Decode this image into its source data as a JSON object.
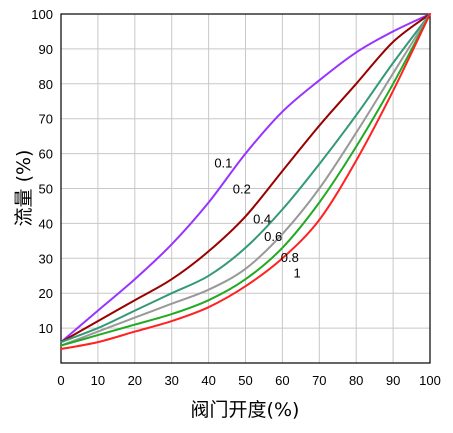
{
  "chart_data": {
    "type": "line",
    "title": "",
    "xlabel": "阀门开度(%)",
    "ylabel": "流量 (%)",
    "xlim": [
      0,
      100
    ],
    "ylim": [
      0,
      100
    ],
    "x_ticks": [
      "0",
      "10",
      "20",
      "30",
      "40",
      "50",
      "60",
      "70",
      "80",
      "90",
      "100"
    ],
    "y_ticks": [
      "10",
      "20",
      "30",
      "40",
      "50",
      "60",
      "70",
      "80",
      "90",
      "100"
    ],
    "grid": true,
    "series": [
      {
        "name": "0.1",
        "color": "#9933ff",
        "points": [
          [
            0,
            6
          ],
          [
            10,
            15
          ],
          [
            20,
            24
          ],
          [
            30,
            34
          ],
          [
            40,
            46
          ],
          [
            50,
            60
          ],
          [
            60,
            72
          ],
          [
            70,
            81
          ],
          [
            80,
            89
          ],
          [
            90,
            95
          ],
          [
            100,
            100
          ]
        ]
      },
      {
        "name": "0.2",
        "color": "#990000",
        "points": [
          [
            0,
            6
          ],
          [
            10,
            12
          ],
          [
            20,
            18
          ],
          [
            30,
            24
          ],
          [
            40,
            32
          ],
          [
            50,
            42
          ],
          [
            60,
            55
          ],
          [
            70,
            68
          ],
          [
            80,
            80
          ],
          [
            90,
            92
          ],
          [
            100,
            100
          ]
        ]
      },
      {
        "name": "0.4",
        "color": "#339977",
        "points": [
          [
            0,
            6
          ],
          [
            10,
            10
          ],
          [
            20,
            15
          ],
          [
            30,
            20
          ],
          [
            40,
            25
          ],
          [
            50,
            33
          ],
          [
            60,
            44
          ],
          [
            70,
            57
          ],
          [
            80,
            71
          ],
          [
            90,
            86
          ],
          [
            100,
            100
          ]
        ]
      },
      {
        "name": "0.6",
        "color": "#999999",
        "points": [
          [
            0,
            5
          ],
          [
            10,
            9
          ],
          [
            20,
            13
          ],
          [
            30,
            17
          ],
          [
            40,
            21
          ],
          [
            50,
            27
          ],
          [
            60,
            37
          ],
          [
            70,
            50
          ],
          [
            80,
            66
          ],
          [
            90,
            83
          ],
          [
            100,
            100
          ]
        ]
      },
      {
        "name": "0.8",
        "color": "#22aa22",
        "points": [
          [
            0,
            5
          ],
          [
            10,
            8
          ],
          [
            20,
            11
          ],
          [
            30,
            14
          ],
          [
            40,
            18
          ],
          [
            50,
            24
          ],
          [
            60,
            33
          ],
          [
            70,
            46
          ],
          [
            80,
            62
          ],
          [
            90,
            80
          ],
          [
            100,
            100
          ]
        ]
      },
      {
        "name": "1",
        "color": "#ff2222",
        "points": [
          [
            0,
            4
          ],
          [
            10,
            6
          ],
          [
            20,
            9
          ],
          [
            30,
            12
          ],
          [
            40,
            16
          ],
          [
            50,
            22
          ],
          [
            60,
            30
          ],
          [
            70,
            41
          ],
          [
            80,
            58
          ],
          [
            90,
            78
          ],
          [
            100,
            100
          ]
        ]
      }
    ],
    "curve_labels": [
      {
        "text": "0.1",
        "x": 44,
        "y": 56
      },
      {
        "text": "0.2",
        "x": 49,
        "y": 48.5
      },
      {
        "text": "0.4",
        "x": 54.5,
        "y": 40
      },
      {
        "text": "0.6",
        "x": 57.5,
        "y": 35
      },
      {
        "text": "0.8",
        "x": 62,
        "y": 29
      },
      {
        "text": "1",
        "x": 64,
        "y": 24.5
      }
    ]
  }
}
